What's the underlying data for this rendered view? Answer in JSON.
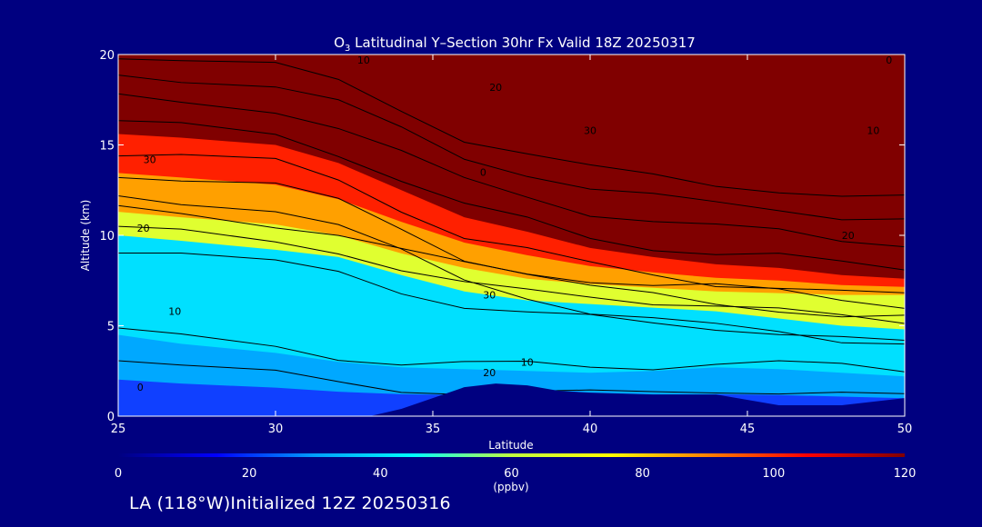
{
  "chart_data": {
    "type": "heatmap",
    "title_prefix": "O",
    "title_subscript": "3",
    "title_rest": " Latitudinal Y–Section 30hr  Fx Valid 18Z 20250317",
    "xlabel": "Latitude",
    "ylabel": "Altitude (km)",
    "xlim": [
      25,
      50
    ],
    "ylim": [
      0,
      20
    ],
    "x_ticks": [
      25,
      30,
      35,
      40,
      45,
      50
    ],
    "y_ticks": [
      0,
      5,
      10,
      15,
      20
    ],
    "colorbar": {
      "ticks": [
        0,
        20,
        40,
        60,
        80,
        100,
        120
      ],
      "units": "(ppbv)",
      "range": [
        0,
        120
      ],
      "colors": [
        "#000080",
        "#0000ff",
        "#00a0ff",
        "#00ffff",
        "#c0ff40",
        "#ffff00",
        "#ff8000",
        "#ff0000",
        "#800000"
      ]
    },
    "terrain": {
      "description_free": true,
      "lat": [
        33,
        34,
        35,
        36,
        37,
        38,
        39,
        40,
        42,
        44,
        46,
        48,
        50
      ],
      "alt": [
        0,
        0.4,
        1.0,
        1.6,
        1.8,
        1.7,
        1.4,
        1.3,
        1.2,
        1.2,
        0.6,
        0.6,
        1.0
      ]
    },
    "field_profiles": {
      "lat": [
        25,
        27,
        30,
        32,
        34,
        36,
        38,
        40,
        42,
        44,
        46,
        48,
        50
      ],
      "alt_120": [
        15.6,
        15.4,
        15.0,
        14.0,
        12.5,
        11.0,
        10.2,
        9.3,
        8.8,
        8.4,
        8.2,
        7.8,
        7.6
      ],
      "alt_80": [
        11.3,
        11.0,
        10.6,
        10.0,
        9.0,
        8.2,
        7.6,
        7.3,
        7.1,
        6.9,
        6.8,
        6.7,
        6.7
      ],
      "alt_60": [
        10.0,
        9.7,
        9.2,
        8.8,
        7.8,
        6.9,
        6.4,
        6.2,
        6.0,
        5.8,
        5.4,
        5.0,
        4.8
      ],
      "alt_40": [
        4.5,
        4.0,
        3.5,
        3.0,
        2.7,
        2.6,
        2.5,
        2.4,
        2.5,
        2.7,
        2.6,
        2.4,
        2.2
      ]
    },
    "contour_labels": [
      {
        "text": "10",
        "lat": 32.8,
        "alt": 19.5
      },
      {
        "text": "0",
        "lat": 49.5,
        "alt": 19.5
      },
      {
        "text": "20",
        "lat": 37.0,
        "alt": 18.0
      },
      {
        "text": "30",
        "lat": 40.0,
        "alt": 15.6
      },
      {
        "text": "10",
        "lat": 49.0,
        "alt": 15.6
      },
      {
        "text": "30",
        "lat": 26.0,
        "alt": 14.0
      },
      {
        "text": "0",
        "lat": 36.6,
        "alt": 13.3
      },
      {
        "text": "20",
        "lat": 25.8,
        "alt": 10.2
      },
      {
        "text": "20",
        "lat": 48.2,
        "alt": 9.8
      },
      {
        "text": "30",
        "lat": 36.8,
        "alt": 6.5
      },
      {
        "text": "10",
        "lat": 26.8,
        "alt": 5.6
      },
      {
        "text": "20",
        "lat": 36.8,
        "alt": 2.2
      },
      {
        "text": "10",
        "lat": 38.0,
        "alt": 2.8
      },
      {
        "text": "0",
        "lat": 25.7,
        "alt": 1.4
      }
    ]
  },
  "footer_text": "LA (118°W)Initialized 12Z 20250316"
}
